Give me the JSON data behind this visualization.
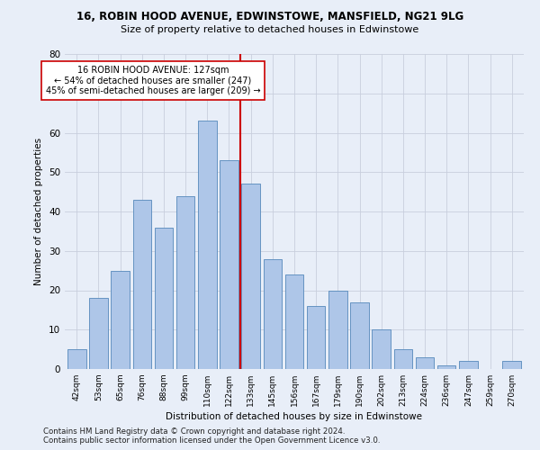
{
  "title": "16, ROBIN HOOD AVENUE, EDWINSTOWE, MANSFIELD, NG21 9LG",
  "subtitle": "Size of property relative to detached houses in Edwinstowe",
  "xlabel": "Distribution of detached houses by size in Edwinstowe",
  "ylabel": "Number of detached properties",
  "footer1": "Contains HM Land Registry data © Crown copyright and database right 2024.",
  "footer2": "Contains public sector information licensed under the Open Government Licence v3.0.",
  "bar_labels": [
    "42sqm",
    "53sqm",
    "65sqm",
    "76sqm",
    "88sqm",
    "99sqm",
    "110sqm",
    "122sqm",
    "133sqm",
    "145sqm",
    "156sqm",
    "167sqm",
    "179sqm",
    "190sqm",
    "202sqm",
    "213sqm",
    "224sqm",
    "236sqm",
    "247sqm",
    "259sqm",
    "270sqm"
  ],
  "bar_values": [
    5,
    18,
    25,
    43,
    36,
    44,
    63,
    53,
    47,
    28,
    24,
    16,
    20,
    17,
    10,
    5,
    3,
    1,
    2,
    0,
    2
  ],
  "bar_color": "#aec6e8",
  "bar_edge_color": "#5588bb",
  "vline_x_index": 7.5,
  "vline_color": "#cc0000",
  "annotation_line0": "16 ROBIN HOOD AVENUE: 127sqm",
  "annotation_line1": "← 54% of detached houses are smaller (247)",
  "annotation_line2": "45% of semi-detached houses are larger (209) →",
  "annotation_box_facecolor": "#ffffff",
  "annotation_box_edgecolor": "#cc0000",
  "bg_color": "#e8eef8",
  "grid_color": "#c8cedd",
  "ylim": [
    0,
    80
  ],
  "yticks": [
    0,
    10,
    20,
    30,
    40,
    50,
    60,
    70,
    80
  ]
}
